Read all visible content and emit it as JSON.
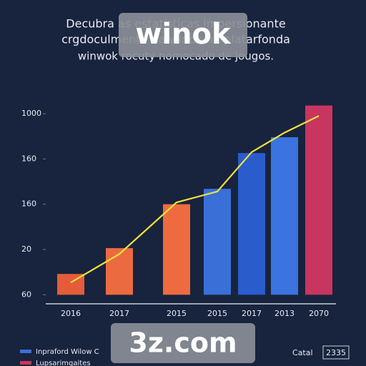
{
  "chart_data": {
    "type": "bar",
    "title_lines": [
      "Decubra as estatísticas impersionante",
      "crgdoculmente da winok na platarfonda",
      "winwok rocuty nomocado de jougos."
    ],
    "categories": [
      "2016",
      "2017",
      "2015",
      "2015",
      "2017",
      "2013",
      "2070"
    ],
    "values": [
      0.46,
      1.03,
      2.0,
      2.34,
      3.13,
      3.48,
      4.18
    ],
    "colors": [
      "#e45c3a",
      "#ec6a40",
      "#ee6b3f",
      "#3a6fd8",
      "#2b5ccc",
      "#3b74e0",
      "#c8355f"
    ],
    "line": {
      "color": "#efe23a",
      "values": [
        0.27,
        0.9,
        2.04,
        2.28,
        3.15,
        3.58,
        3.95
      ]
    },
    "ylim": [
      -0.2,
      4.3
    ],
    "yticks": [
      {
        "value": 0,
        "label": "60"
      },
      {
        "value": 1,
        "label": "20"
      },
      {
        "value": 2,
        "label": "160"
      },
      {
        "value": 3,
        "label": "160"
      },
      {
        "value": 4,
        "label": "1000"
      }
    ],
    "legend": [
      {
        "label": "Inpraford Wilow C",
        "color": "#3a6fd8"
      },
      {
        "label": "Lupsarimgaites",
        "color": "#c8355f"
      }
    ],
    "footer": {
      "label": "Catal",
      "value": "2335"
    },
    "watermarks": [
      "winok",
      "3z.com"
    ]
  }
}
